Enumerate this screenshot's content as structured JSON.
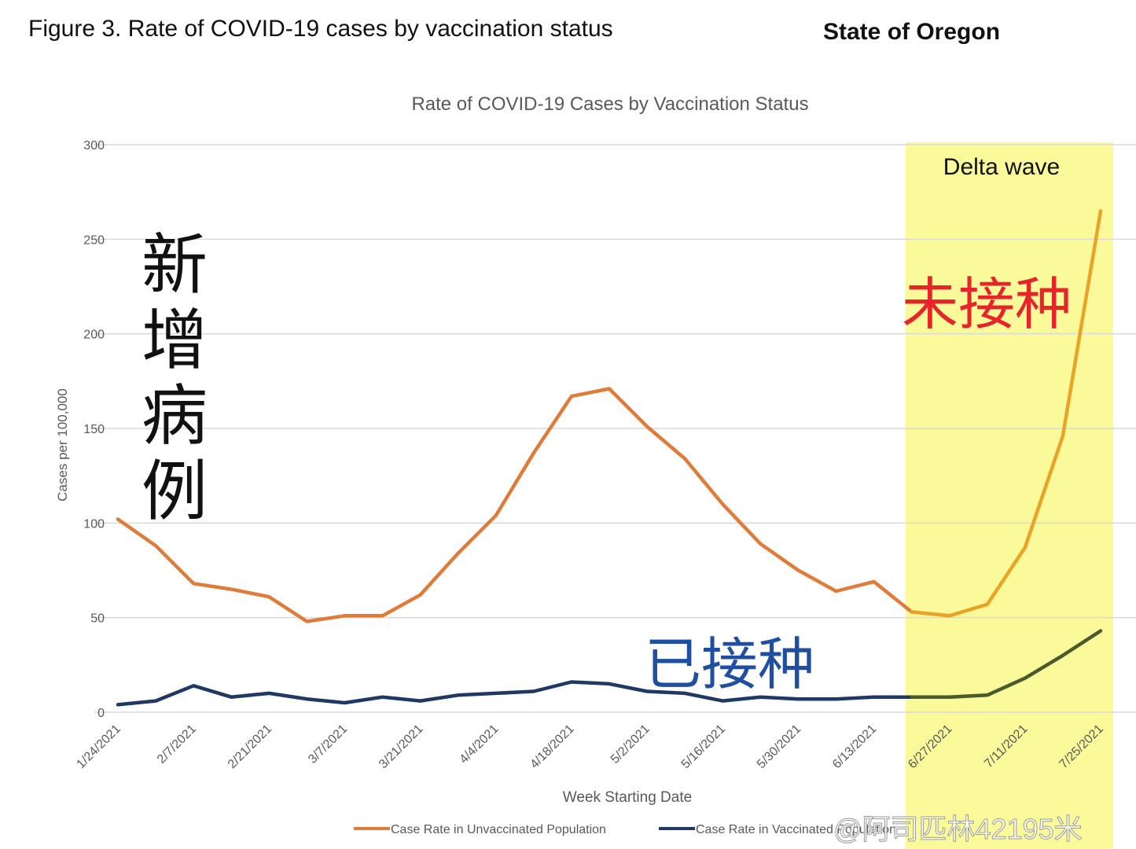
{
  "figure_title": "Figure 3. Rate of COVID-19 cases by vaccination status",
  "state_label": "State of Oregon",
  "watermark": "@阿司匹林42195米",
  "annotations": {
    "delta_wave": "Delta wave",
    "new_cases": "新增病例",
    "unvaccinated": "未接种",
    "vaccinated": "已接种"
  },
  "colors": {
    "unvaccinated": "#e07b39",
    "unvaccinated_delta": "#e9a326",
    "vaccinated": "#1f3864",
    "vaccinated_delta": "#4a5a2a",
    "delta_band": "#fafa9a",
    "unvaccinated_label": "#e8242a",
    "vaccinated_label": "#1f4fa0",
    "grid": "#d9d9d9",
    "axis_text": "#595959"
  },
  "chart_data": {
    "type": "line",
    "title": "Rate of COVID-19 Cases by Vaccination Status",
    "xlabel": "Week Starting Date",
    "ylabel": "Cases per 100,000",
    "ylim": [
      0,
      300
    ],
    "yticks": [
      0,
      50,
      100,
      150,
      200,
      250,
      300
    ],
    "grid": true,
    "legend_position": "bottom",
    "x": [
      "1/24/2021",
      "1/31/2021",
      "2/7/2021",
      "2/14/2021",
      "2/21/2021",
      "2/28/2021",
      "3/7/2021",
      "3/14/2021",
      "3/21/2021",
      "3/28/2021",
      "4/4/2021",
      "4/11/2021",
      "4/18/2021",
      "4/25/2021",
      "5/2/2021",
      "5/9/2021",
      "5/16/2021",
      "5/23/2021",
      "5/30/2021",
      "6/6/2021",
      "6/13/2021",
      "6/20/2021",
      "6/27/2021",
      "7/4/2021",
      "7/11/2021",
      "7/18/2021",
      "7/25/2021"
    ],
    "xtick_labels": [
      "1/24/2021",
      "2/7/2021",
      "2/21/2021",
      "3/7/2021",
      "3/21/2021",
      "4/4/2021",
      "4/18/2021",
      "5/2/2021",
      "5/16/2021",
      "5/30/2021",
      "6/13/2021",
      "6/27/2021",
      "7/11/2021",
      "7/25/2021"
    ],
    "highlight": {
      "label": "Delta wave",
      "from": "6/20/2021",
      "to": "7/25/2021"
    },
    "series": [
      {
        "name": "Case Rate in Unvaccinated Population",
        "values": [
          102,
          88,
          68,
          65,
          61,
          48,
          51,
          51,
          62,
          84,
          104,
          137,
          167,
          171,
          151,
          134,
          110,
          89,
          75,
          64,
          69,
          53,
          51,
          57,
          87,
          146,
          265
        ]
      },
      {
        "name": "Case Rate in Vaccinated Population",
        "values": [
          4,
          6,
          14,
          8,
          10,
          7,
          5,
          8,
          6,
          9,
          10,
          11,
          16,
          15,
          11,
          10,
          6,
          8,
          7,
          7,
          8,
          8,
          8,
          9,
          18,
          30,
          43
        ]
      }
    ]
  }
}
